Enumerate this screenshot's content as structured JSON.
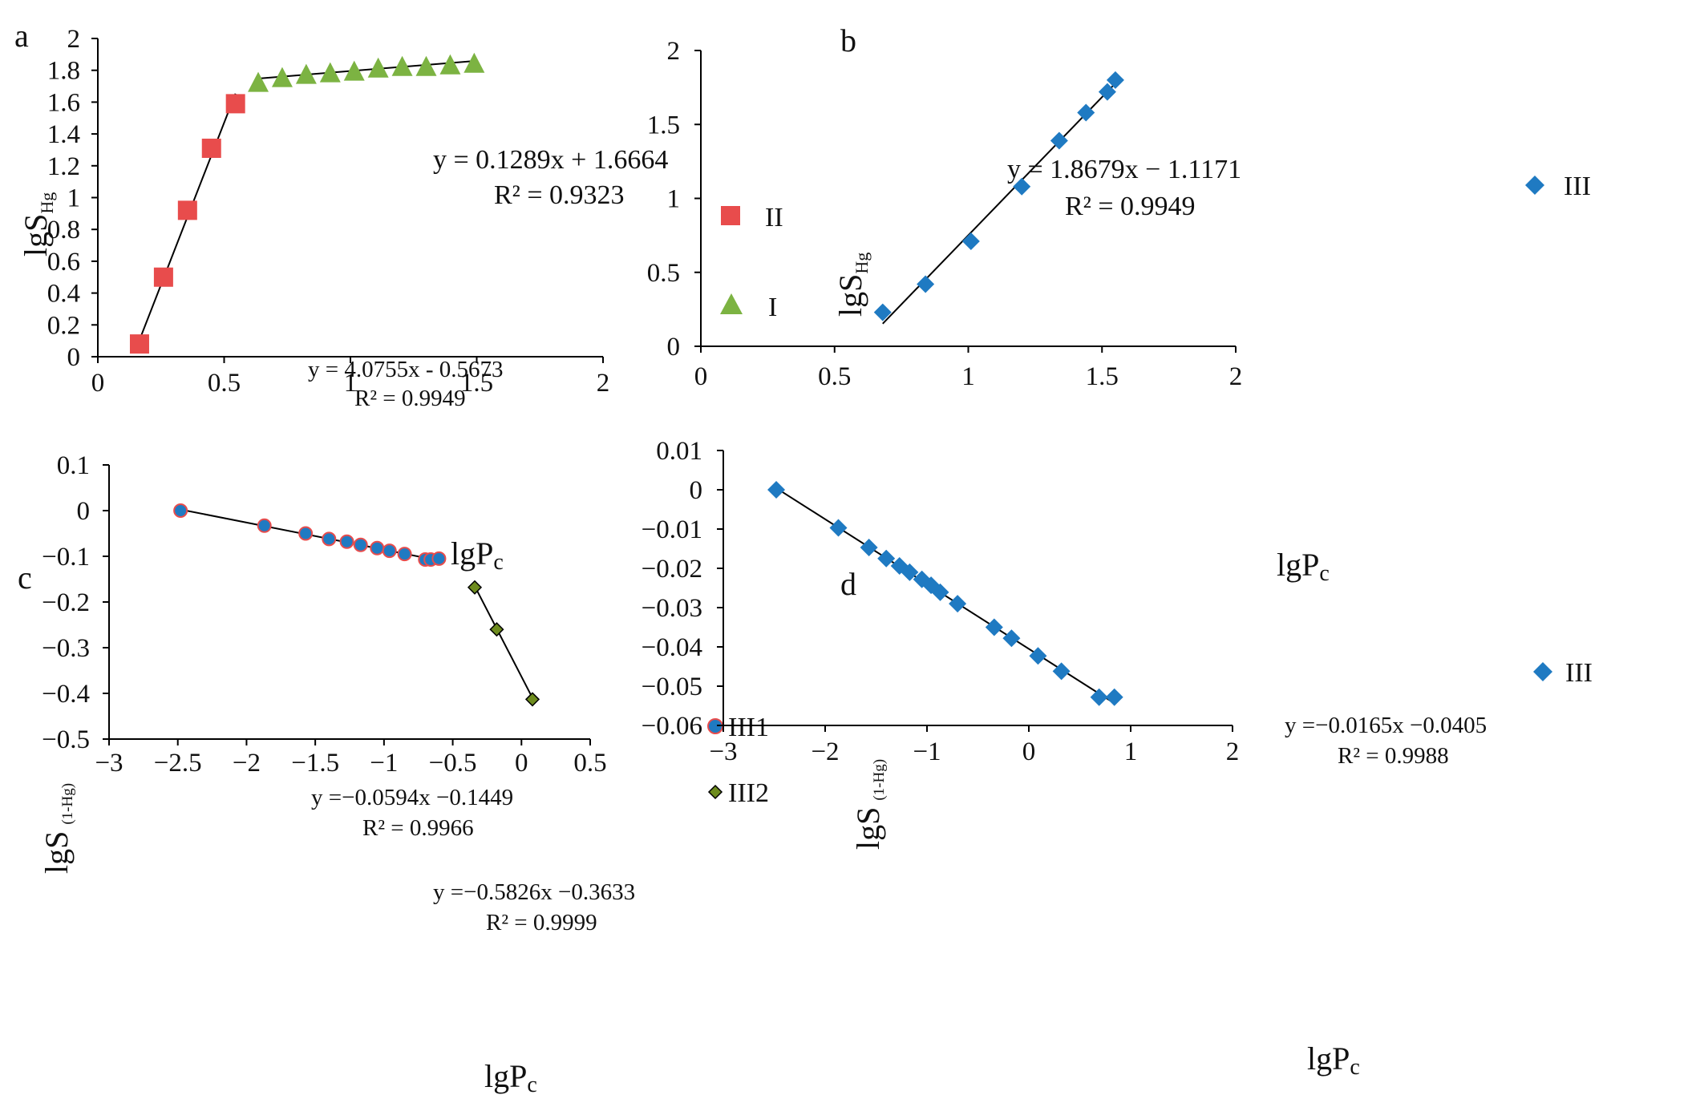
{
  "chart_data": [
    {
      "id": "a",
      "type": "scatter",
      "panel_label": "a",
      "xlabel": "lgPc",
      "ylabel": "lgSHg",
      "xlim": [
        0,
        2
      ],
      "ylim": [
        0,
        2
      ],
      "xticks": [
        "0",
        "0.5",
        "1",
        "1.5",
        "2"
      ],
      "yticks": [
        "0",
        "0.2",
        "0.4",
        "0.6",
        "0.8",
        "1",
        "1.2",
        "1.4",
        "1.6",
        "1.8",
        "2"
      ],
      "legend_position": "right",
      "series": [
        {
          "name": "II",
          "color": "#e84c4c",
          "marker": "square",
          "x": [
            0.165,
            0.26,
            0.355,
            0.45,
            0.545
          ],
          "y": [
            0.08,
            0.5,
            0.92,
            1.31,
            1.59
          ],
          "fit": {
            "x": [
              0.165,
              0.545
            ],
            "label_1": "y = 4.0755x - 0.5673",
            "label_2": "R² = 0.9949"
          }
        },
        {
          "name": "I",
          "color": "#7cb342",
          "marker": "triangle",
          "x": [
            0.635,
            0.73,
            0.825,
            0.92,
            1.015,
            1.11,
            1.205,
            1.3,
            1.395,
            1.49
          ],
          "y": [
            1.72,
            1.75,
            1.77,
            1.78,
            1.79,
            1.81,
            1.82,
            1.82,
            1.83,
            1.84
          ],
          "fit": {
            "x": [
              0.635,
              1.49
            ],
            "label_1": "y = 0.1289x + 1.6664",
            "label_2": "R² = 0.9323"
          }
        }
      ]
    },
    {
      "id": "b",
      "type": "scatter",
      "panel_label": "b",
      "xlabel": "lgPc",
      "ylabel": "lgSHg",
      "xlim": [
        0,
        2
      ],
      "ylim": [
        0,
        2
      ],
      "xticks": [
        "0",
        "0.5",
        "1",
        "1.5",
        "2"
      ],
      "yticks": [
        "0",
        "0.5",
        "1",
        "1.5",
        "2"
      ],
      "legend_position": "right",
      "series": [
        {
          "name": "III",
          "color": "#1f7ac2",
          "marker": "diamond",
          "x": [
            0.68,
            0.84,
            1.01,
            1.2,
            1.34,
            1.44,
            1.52,
            1.55
          ],
          "y": [
            0.23,
            0.42,
            0.71,
            1.08,
            1.39,
            1.58,
            1.72,
            1.8
          ],
          "fit": {
            "x": [
              0.68,
              1.55
            ],
            "label_1": "y = 1.8679x − 1.1171",
            "label_2": "R² = 0.9949"
          }
        }
      ]
    },
    {
      "id": "c",
      "type": "scatter",
      "panel_label": "c",
      "xlabel": "lgPc",
      "ylabel": "lgS(1-Hg)",
      "xlim": [
        -3,
        0.5
      ],
      "ylim": [
        -0.5,
        0.1
      ],
      "xticks": [
        "−3",
        "−2.5",
        "−2",
        "−1.5",
        "−1",
        "−0.5",
        "0",
        "0.5"
      ],
      "yticks": [
        "−0.5",
        "−0.4",
        "−0.3",
        "−0.2",
        "−0.1",
        "0",
        "0.1"
      ],
      "legend_position": "right",
      "series": [
        {
          "name": "III1",
          "color": "#1f7ac2",
          "marker": "circle",
          "x": [
            -2.48,
            -1.87,
            -1.57,
            -1.4,
            -1.27,
            -1.17,
            -1.05,
            -0.96,
            -0.85,
            -0.7,
            -0.66,
            -0.6
          ],
          "y": [
            0.0,
            -0.033,
            -0.05,
            -0.062,
            -0.068,
            -0.075,
            -0.082,
            -0.088,
            -0.095,
            -0.107,
            -0.107,
            -0.105
          ],
          "fit": {
            "x": [
              -2.48,
              -0.6
            ],
            "label_1": "y =−0.0594x −0.1449",
            "label_2": "R² = 0.9966"
          }
        },
        {
          "name": "III2",
          "color": "#6e8c1e",
          "marker": "diamond",
          "x": [
            -0.34,
            -0.18,
            0.08
          ],
          "y": [
            -0.168,
            -0.26,
            -0.413
          ],
          "fit": {
            "x": [
              -0.34,
              0.08
            ],
            "label_1": "y =−0.5826x −0.3633",
            "label_2": "R² = 0.9999"
          }
        }
      ]
    },
    {
      "id": "d",
      "type": "scatter",
      "panel_label": "d",
      "xlabel": "lgPc",
      "ylabel": "lgS(1-Hg)",
      "xlim": [
        -3,
        2
      ],
      "ylim": [
        -0.06,
        0.01
      ],
      "xticks": [
        "−3",
        "−2",
        "−1",
        "0",
        "1",
        "2"
      ],
      "yticks": [
        "−0.06",
        "−0.05",
        "−0.04",
        "−0.03",
        "−0.02",
        "−0.01",
        "0",
        "0.01"
      ],
      "legend_position": "top-right",
      "series": [
        {
          "name": "III",
          "color": "#1f7ac2",
          "marker": "diamond",
          "x": [
            -2.48,
            -1.87,
            -1.57,
            -1.4,
            -1.27,
            -1.17,
            -1.05,
            -0.96,
            -0.87,
            -0.7,
            -0.34,
            -0.17,
            0.09,
            0.32,
            0.69,
            0.84
          ],
          "y": [
            0.0,
            -0.0097,
            -0.0147,
            -0.0175,
            -0.0194,
            -0.021,
            -0.0228,
            -0.0243,
            -0.0261,
            -0.029,
            -0.035,
            -0.0378,
            -0.0423,
            -0.0462,
            -0.0528,
            -0.0528
          ],
          "fit": {
            "x": [
              -2.48,
              0.84
            ],
            "label_1": "y =−0.0165x −0.0405",
            "label_2": "R² = 0.9988"
          }
        }
      ]
    }
  ]
}
